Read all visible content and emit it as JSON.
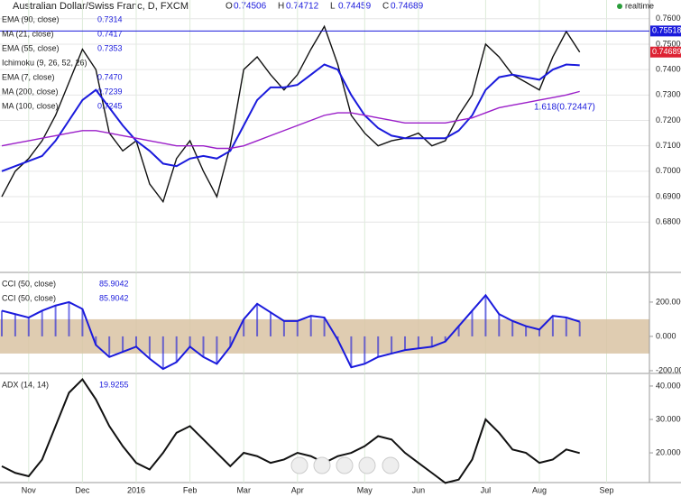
{
  "header": {
    "title": "Australian Dollar/Swiss Franc, D, FXCM",
    "ohlc": [
      {
        "label": "O",
        "value": "0.74506"
      },
      {
        "label": "H",
        "value": "0.74712"
      },
      {
        "label": "L",
        "value": "0.74459"
      },
      {
        "label": "C",
        "value": "0.74689"
      }
    ],
    "status": "realtime"
  },
  "chart_data": [
    {
      "type": "line",
      "categories": [
        null,
        null,
        "Nov",
        null,
        null,
        null,
        "Dec",
        null,
        null,
        null,
        "2016",
        null,
        null,
        null,
        "Feb",
        null,
        null,
        null,
        "Mar",
        null,
        null,
        null,
        "Apr",
        null,
        null,
        null,
        null,
        "May",
        null,
        null,
        null,
        "Jun",
        null,
        null,
        null,
        null,
        "Jul",
        null,
        null,
        null,
        "Aug",
        null,
        null,
        null,
        null,
        "Sep"
      ],
      "series": [
        {
          "color": "#111111",
          "values": [
            0.69,
            0.7,
            0.705,
            0.712,
            0.722,
            0.735,
            0.748,
            0.74,
            0.715,
            0.708,
            0.712,
            0.695,
            0.688,
            0.705,
            0.712,
            0.7,
            0.69,
            0.71,
            0.74,
            0.745,
            0.738,
            0.732,
            0.738,
            0.748,
            0.757,
            0.742,
            0.722,
            0.715,
            0.71,
            0.712,
            0.713,
            0.715,
            0.71,
            0.712,
            0.722,
            0.73,
            0.75,
            0.745,
            0.738,
            0.735,
            0.732,
            0.745,
            0.755,
            0.74689,
            null,
            null
          ]
        },
        {
          "color": "#1a1adc",
          "values": [
            0.7,
            0.702,
            0.704,
            0.706,
            0.712,
            0.72,
            0.728,
            0.732,
            0.725,
            0.718,
            0.712,
            0.708,
            0.703,
            0.702,
            0.705,
            0.706,
            0.705,
            0.708,
            0.718,
            0.728,
            0.733,
            0.733,
            0.734,
            0.738,
            0.742,
            0.74,
            0.73,
            0.722,
            0.717,
            0.714,
            0.713,
            0.713,
            0.713,
            0.713,
            0.716,
            0.722,
            0.732,
            0.737,
            0.738,
            0.737,
            0.736,
            0.74,
            0.742,
            0.7417,
            null,
            null
          ]
        },
        {
          "color": "#9b1fc9",
          "values": [
            0.71,
            0.711,
            0.712,
            0.713,
            0.714,
            0.715,
            0.716,
            0.716,
            0.715,
            0.714,
            0.713,
            0.712,
            0.711,
            0.71,
            0.71,
            0.71,
            0.709,
            0.709,
            0.71,
            0.712,
            0.714,
            0.716,
            0.718,
            0.72,
            0.722,
            0.723,
            0.723,
            0.722,
            0.721,
            0.72,
            0.719,
            0.719,
            0.719,
            0.719,
            0.72,
            0.721,
            0.723,
            0.725,
            0.726,
            0.727,
            0.728,
            0.729,
            0.73,
            0.7314,
            null,
            null
          ]
        }
      ],
      "indicators": [
        {
          "name": "EMA (90, close)",
          "value": "0.7314"
        },
        {
          "name": "MA (21, close)",
          "value": "0.7417"
        },
        {
          "name": "EMA (55, close)",
          "value": "0.7353"
        },
        {
          "name": "Ichimoku (9, 26, 52, 26)"
        },
        {
          "name": "EMA (7, close)",
          "value": "0.7470"
        },
        {
          "name": "MA (200, close)",
          "value": "0.7239"
        },
        {
          "name": "MA (100, close)",
          "value": "0.7245"
        }
      ],
      "hline": 0.75518,
      "last_price": 0.74689,
      "fib": {
        "value": 0.72447,
        "label": "1.618(0.72447)"
      },
      "ylim": [
        0.6602,
        0.7617
      ],
      "yticks": [
        {
          "value": 0.68,
          "label": "0.68000"
        },
        {
          "value": 0.69,
          "label": "0.69000"
        },
        {
          "value": 0.7,
          "label": "0.70000"
        },
        {
          "value": 0.71,
          "label": "0.71000"
        },
        {
          "value": 0.72,
          "label": "0.72000"
        },
        {
          "value": 0.73,
          "label": "0.73000"
        },
        {
          "value": 0.74,
          "label": "0.74000"
        },
        {
          "value": 0.75,
          "label": "0.75000"
        },
        {
          "value": 0.76,
          "label": "0.76000"
        }
      ],
      "grid": true
    },
    {
      "type": "oscillator",
      "series": [
        {
          "color": "#1a1adc",
          "values": [
            150,
            130,
            110,
            150,
            180,
            200,
            160,
            -50,
            -120,
            -90,
            -60,
            -130,
            -190,
            -150,
            -60,
            -120,
            -160,
            -60,
            100,
            190,
            140,
            90,
            90,
            120,
            110,
            -20,
            -180,
            -160,
            -120,
            -100,
            -80,
            -70,
            -60,
            -30,
            60,
            150,
            240,
            130,
            90,
            60,
            40,
            120,
            110,
            85.9042,
            null,
            null
          ]
        }
      ],
      "indicators": [
        {
          "name": "CCI (50, close)",
          "value": "85.9042"
        },
        {
          "name": "CCI (50, close)",
          "value": "85.9042"
        }
      ],
      "band": [
        -100,
        100
      ],
      "band_color": "#d9c3a3",
      "ylim": [
        -216,
        368
      ],
      "yticks": [
        {
          "value": -200,
          "label": "-200.000"
        },
        {
          "value": 0,
          "label": "0.000"
        },
        {
          "value": 200,
          "label": "200.000"
        }
      ]
    },
    {
      "type": "line",
      "series": [
        {
          "color": "#111111",
          "values": [
            16,
            14,
            13,
            18,
            28,
            38,
            42,
            36,
            28,
            22,
            17,
            15,
            20,
            26,
            28,
            24,
            20,
            16,
            20,
            19,
            17,
            18,
            20,
            19,
            17,
            19,
            20,
            22,
            25,
            24,
            20,
            17,
            14,
            11,
            12,
            18,
            30,
            26,
            21,
            20,
            17,
            18,
            21,
            19.9255,
            null,
            null
          ]
        }
      ],
      "indicators": [
        {
          "name": "ADX (14, 14)",
          "value": "19.9255"
        }
      ],
      "ylim": [
        11.1,
        43.5
      ],
      "yticks": [
        {
          "value": 20,
          "label": "20.0000"
        },
        {
          "value": 30,
          "label": "30.0000"
        },
        {
          "value": 40,
          "label": "40.0000"
        }
      ]
    }
  ]
}
